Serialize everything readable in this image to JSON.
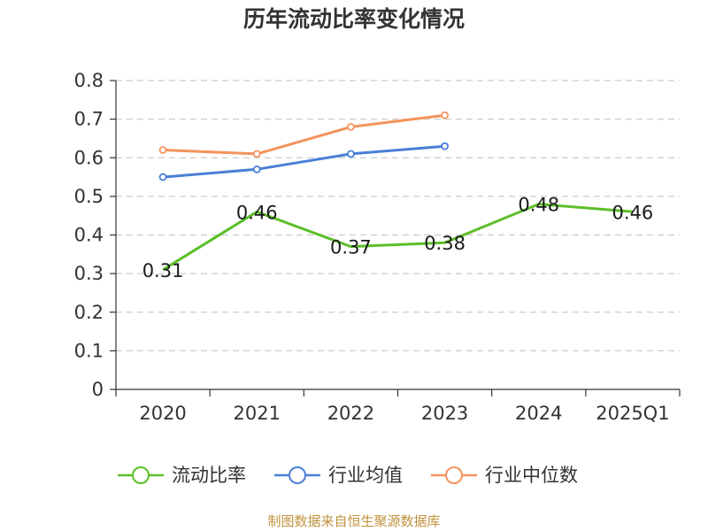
{
  "chart_data": {
    "type": "line",
    "title": "历年流动比率变化情况",
    "xlabel": "",
    "ylabel": "",
    "categories": [
      "2020",
      "2021",
      "2022",
      "2023",
      "2024",
      "2025Q1"
    ],
    "ylim": [
      0,
      0.8
    ],
    "yticks": [
      0,
      0.1,
      0.2,
      0.3,
      0.4,
      0.5,
      0.6,
      0.7,
      0.8
    ],
    "ytick_labels": [
      "0",
      "0.1",
      "0.2",
      "0.3",
      "0.4",
      "0.5",
      "0.6",
      "0.7",
      "0.8"
    ],
    "grid": true,
    "legend_position": "bottom",
    "series": [
      {
        "name": "流动比率",
        "color": "#5cbf2a",
        "values": [
          0.31,
          0.46,
          0.37,
          0.38,
          0.48,
          0.46
        ],
        "labels": [
          "0.31",
          "0.46",
          "0.37",
          "0.38",
          "0.48",
          "0.46"
        ],
        "show_labels": true,
        "show_markers": false
      },
      {
        "name": "行业均值",
        "color": "#4a7fd6",
        "values": [
          0.55,
          0.57,
          0.61,
          0.63,
          null,
          null
        ],
        "show_labels": false,
        "show_markers": true
      },
      {
        "name": "行业中位数",
        "color": "#f4935c",
        "values": [
          0.62,
          0.61,
          0.68,
          0.71,
          null,
          null
        ],
        "show_labels": false,
        "show_markers": true
      }
    ]
  },
  "source": "制图数据来自恒生聚源数据库"
}
